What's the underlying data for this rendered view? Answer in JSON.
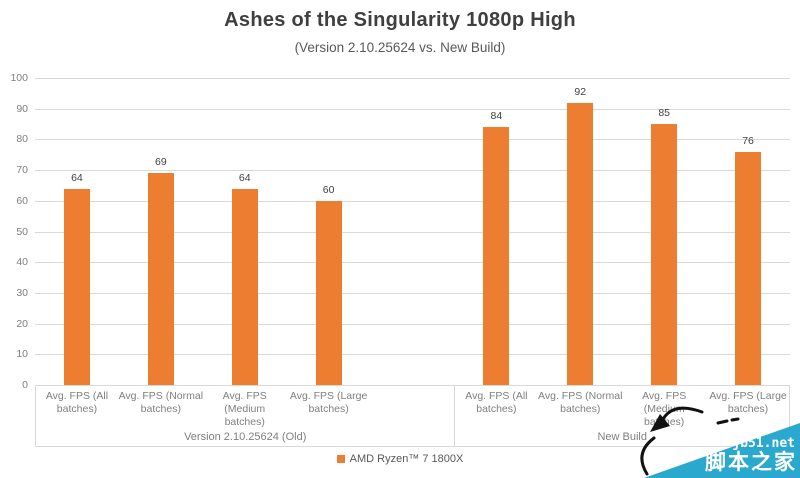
{
  "chart_data": {
    "type": "bar",
    "title": "Ashes of the Singularity 1080p High",
    "subtitle": "(Version 2.10.25624 vs. New Build)",
    "xlabel": "",
    "ylabel": "",
    "ylim": [
      0,
      100
    ],
    "ytick_step": 10,
    "grid": true,
    "legend_position": "bottom",
    "bar_color": "#ED7D31",
    "categories": [
      "Avg. FPS (All batches)",
      "Avg. FPS (Normal batches)",
      "Avg. FPS (Medium batches)",
      "Avg. FPS (Large batches)"
    ],
    "category_lines": [
      [
        "Avg. FPS (All",
        "batches)"
      ],
      [
        "Avg. FPS (Normal",
        "batches)"
      ],
      [
        "Avg. FPS",
        "(Medium",
        "batches)"
      ],
      [
        "Avg. FPS (Large",
        "batches)"
      ]
    ],
    "groups": [
      {
        "name": "Version 2.10.25624 (Old)",
        "values": [
          64,
          69,
          64,
          60
        ]
      },
      {
        "name": "New Build",
        "values": [
          84,
          92,
          85,
          76
        ]
      }
    ],
    "series": [
      {
        "name": "AMD Ryzen™ 7 1800X",
        "color": "#ED7D31"
      }
    ]
  },
  "legend": {
    "label": "AMD Ryzen™ 7 1800X",
    "color": "#ED7D31"
  },
  "watermark": {
    "site": "jb51.net",
    "brand": "脚本之家",
    "color": "#2BA8CE"
  },
  "axis_colors": {
    "gridline": "#d9d9d9",
    "tick_text": "#7f7f7f",
    "value_text": "#404040"
  }
}
